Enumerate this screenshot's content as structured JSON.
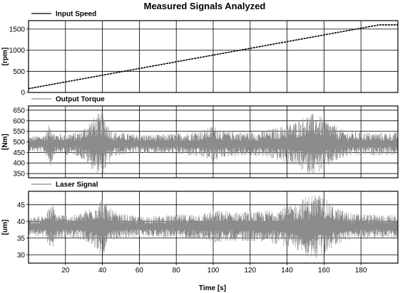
{
  "chart_data": {
    "type": "line",
    "title": "Measured Signals Analyzed",
    "xlabel": "Time [s]",
    "xlim": [
      0,
      200
    ],
    "x_ticks": [
      20,
      40,
      60,
      80,
      100,
      120,
      140,
      160,
      180
    ],
    "grid": true,
    "subplots": [
      {
        "series_name": "Input Speed",
        "ylabel": "[rpm]",
        "ylim": [
          0,
          1700
        ],
        "y_ticks": [
          0,
          500,
          1000,
          1500
        ],
        "legend": "top-left",
        "color": "#000000",
        "points": [
          [
            0,
            90
          ],
          [
            190,
            1600
          ],
          [
            200,
            1600
          ]
        ]
      },
      {
        "series_name": "Output Torque",
        "ylabel": "[Nm]",
        "ylim": [
          330,
          670
        ],
        "y_ticks": [
          350,
          400,
          450,
          500,
          550,
          600,
          650
        ],
        "legend": "top-left",
        "color": "#8c8c8c",
        "center": 490,
        "envelope": [
          [
            0,
            35
          ],
          [
            8,
            45
          ],
          [
            10,
            65
          ],
          [
            12,
            110
          ],
          [
            14,
            50
          ],
          [
            18,
            50
          ],
          [
            22,
            55
          ],
          [
            26,
            55
          ],
          [
            30,
            80
          ],
          [
            33,
            110
          ],
          [
            37,
            140
          ],
          [
            40,
            155
          ],
          [
            43,
            100
          ],
          [
            46,
            60
          ],
          [
            55,
            50
          ],
          [
            70,
            45
          ],
          [
            85,
            55
          ],
          [
            95,
            70
          ],
          [
            100,
            90
          ],
          [
            105,
            65
          ],
          [
            115,
            60
          ],
          [
            125,
            60
          ],
          [
            135,
            80
          ],
          [
            145,
            110
          ],
          [
            150,
            140
          ],
          [
            155,
            145
          ],
          [
            160,
            125
          ],
          [
            165,
            95
          ],
          [
            172,
            60
          ],
          [
            185,
            55
          ],
          [
            200,
            55
          ]
        ]
      },
      {
        "series_name": "Laser Signal",
        "ylabel": "[um]",
        "ylim": [
          27.5,
          49
        ],
        "y_ticks": [
          30,
          35,
          40,
          45
        ],
        "legend": "top-left",
        "color": "#8c8c8c",
        "center": 38.5,
        "envelope": [
          [
            0,
            2.5
          ],
          [
            8,
            3.5
          ],
          [
            11,
            5.5
          ],
          [
            13,
            7
          ],
          [
            15,
            4
          ],
          [
            20,
            3.5
          ],
          [
            25,
            3.5
          ],
          [
            30,
            4.5
          ],
          [
            35,
            6.5
          ],
          [
            38,
            8
          ],
          [
            40,
            9
          ],
          [
            43,
            6
          ],
          [
            48,
            4
          ],
          [
            60,
            3
          ],
          [
            80,
            3.5
          ],
          [
            95,
            4
          ],
          [
            100,
            5
          ],
          [
            110,
            4.5
          ],
          [
            125,
            4.5
          ],
          [
            135,
            5.5
          ],
          [
            145,
            7
          ],
          [
            150,
            9
          ],
          [
            155,
            10
          ],
          [
            160,
            9
          ],
          [
            165,
            6
          ],
          [
            175,
            4
          ],
          [
            190,
            3.5
          ],
          [
            200,
            3.5
          ]
        ]
      }
    ]
  }
}
